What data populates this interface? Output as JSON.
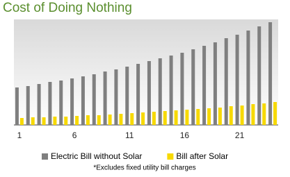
{
  "chart_data": {
    "type": "bar",
    "title": "Cost of Doing Nothing",
    "categories": [
      "1",
      null,
      null,
      null,
      null,
      "6",
      null,
      null,
      null,
      null,
      "11",
      null,
      null,
      null,
      null,
      "16",
      null,
      null,
      null,
      null,
      "21",
      null,
      null,
      null
    ],
    "series": [
      {
        "name": "Electric Bill without Solar",
        "color": "#7f7f7f",
        "values": [
          54,
          56,
          59,
          62,
          64,
          67,
          70,
          73,
          77,
          80,
          84,
          88,
          92,
          96,
          100,
          104,
          109,
          114,
          119,
          125,
          130,
          136,
          142,
          148
        ]
      },
      {
        "name": "Bill after Solar",
        "color": "#f7d900",
        "values": [
          10,
          11,
          11,
          12,
          12,
          13,
          14,
          14,
          15,
          16,
          17,
          18,
          19,
          20,
          21,
          22,
          23,
          24,
          25,
          27,
          28,
          30,
          31,
          33
        ]
      }
    ],
    "ylim": [
      0,
      150
    ],
    "footnote": "*Excludes fixed utility bill charges"
  }
}
